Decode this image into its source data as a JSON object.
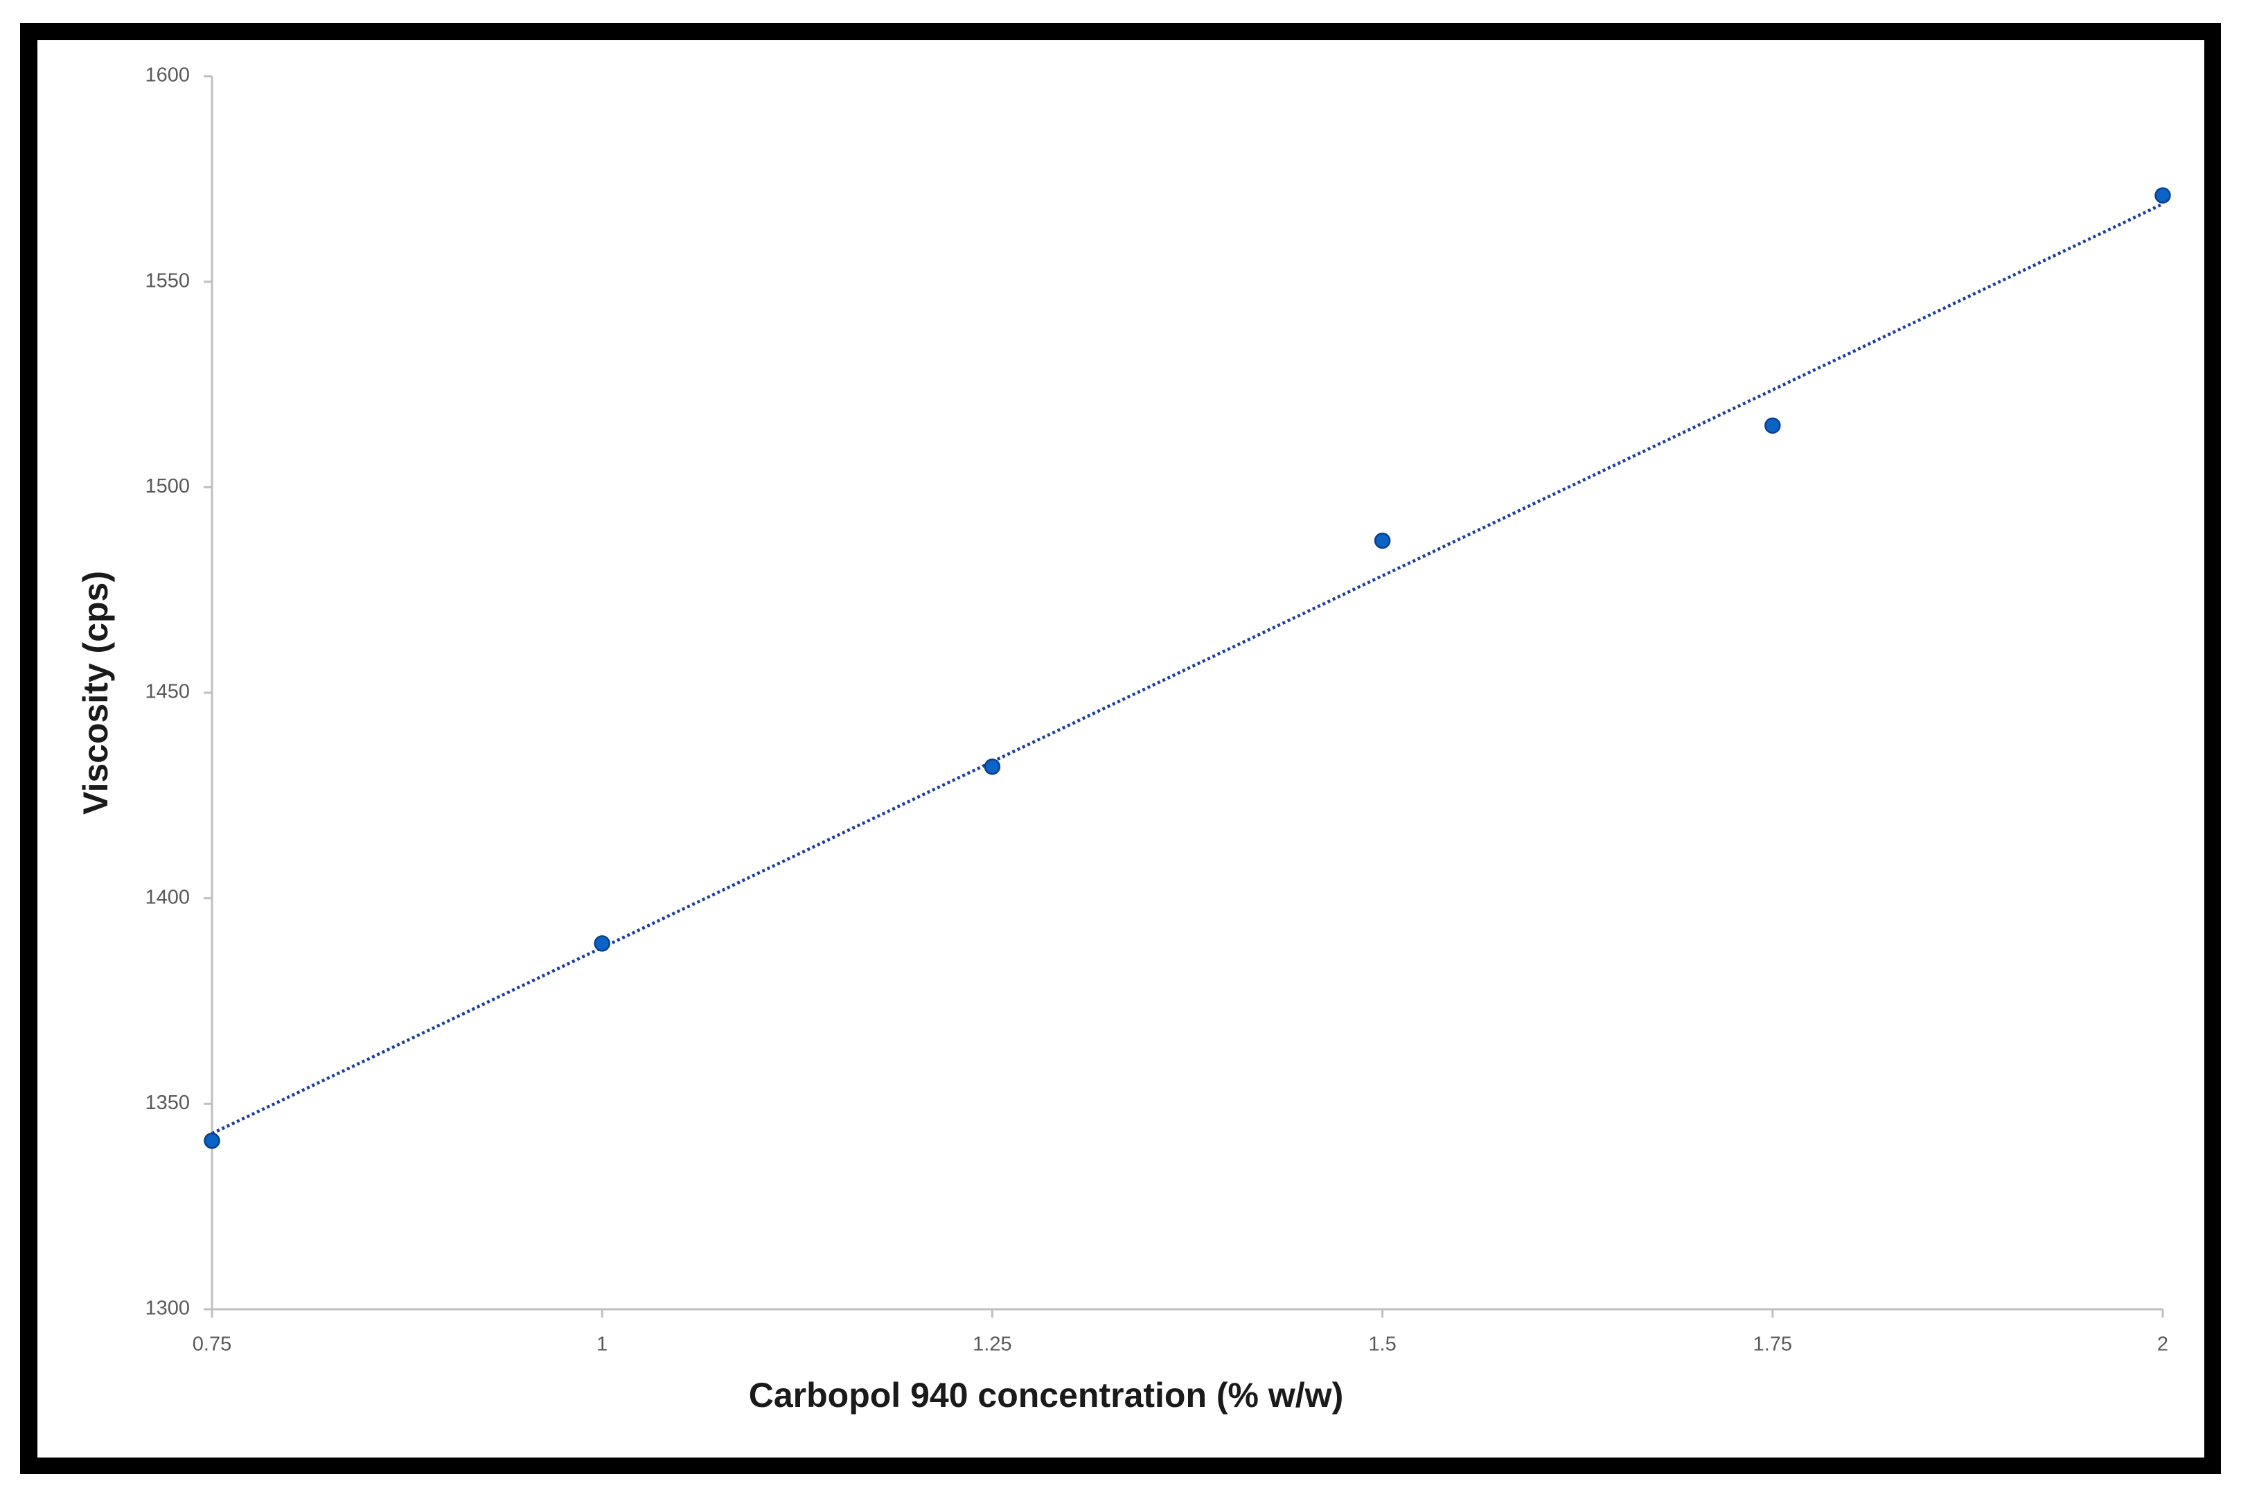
{
  "chart_data": {
    "type": "scatter",
    "x_label": "Carbopol 940 concentration (% w/w)",
    "y_label": "Viscosity (cps)",
    "x": [
      0.75,
      1,
      1.25,
      1.5,
      1.75,
      2
    ],
    "series": [
      {
        "color": "#0a64c8",
        "values": [
          1341,
          1389,
          1432,
          1487,
          1515,
          1571
        ]
      }
    ],
    "trendline": {
      "type": "linear",
      "color": "#1f3f9a"
    },
    "xlim": [
      0.75,
      2
    ],
    "xticks": [
      0.75,
      1,
      1.25,
      1.5,
      1.75,
      2
    ],
    "ylim": [
      1300,
      1600
    ],
    "yticks": [
      1300,
      1350,
      1400,
      1450,
      1500,
      1550,
      1600
    ],
    "grid": false
  }
}
